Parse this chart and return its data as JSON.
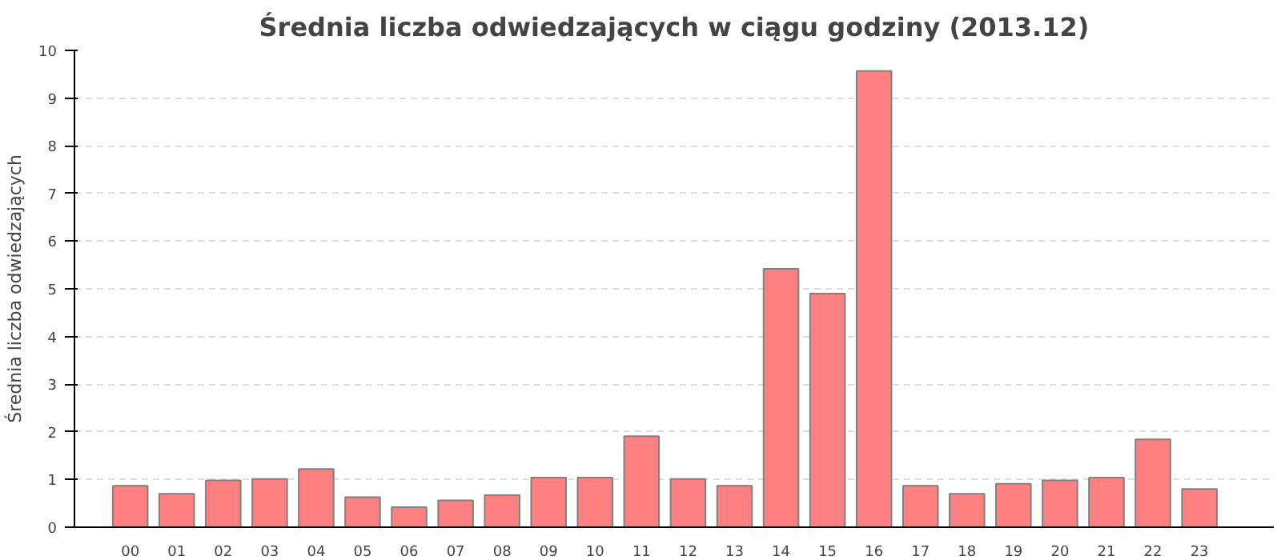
{
  "chart_data": {
    "type": "bar",
    "title": "Średnia liczba odwiedzających w ciągu godziny (2013.12)",
    "ylabel": "Średnia liczba odwiedzających",
    "categories": [
      "00",
      "01",
      "02",
      "03",
      "04",
      "05",
      "06",
      "07",
      "08",
      "09",
      "10",
      "11",
      "12",
      "13",
      "14",
      "15",
      "16",
      "17",
      "18",
      "19",
      "20",
      "21",
      "22",
      "23"
    ],
    "values": [
      0.87,
      0.7,
      0.98,
      1.01,
      1.22,
      0.63,
      0.42,
      0.56,
      0.67,
      1.04,
      1.04,
      1.91,
      1.01,
      0.87,
      5.42,
      4.9,
      9.57,
      0.87,
      0.7,
      0.91,
      0.98,
      1.04,
      1.84,
      0.8
    ],
    "color": "#ff8080",
    "ylim": [
      0,
      10
    ],
    "yticks": [
      0,
      1,
      2,
      3,
      4,
      5,
      6,
      7,
      8,
      9,
      10
    ],
    "grid": "y"
  }
}
